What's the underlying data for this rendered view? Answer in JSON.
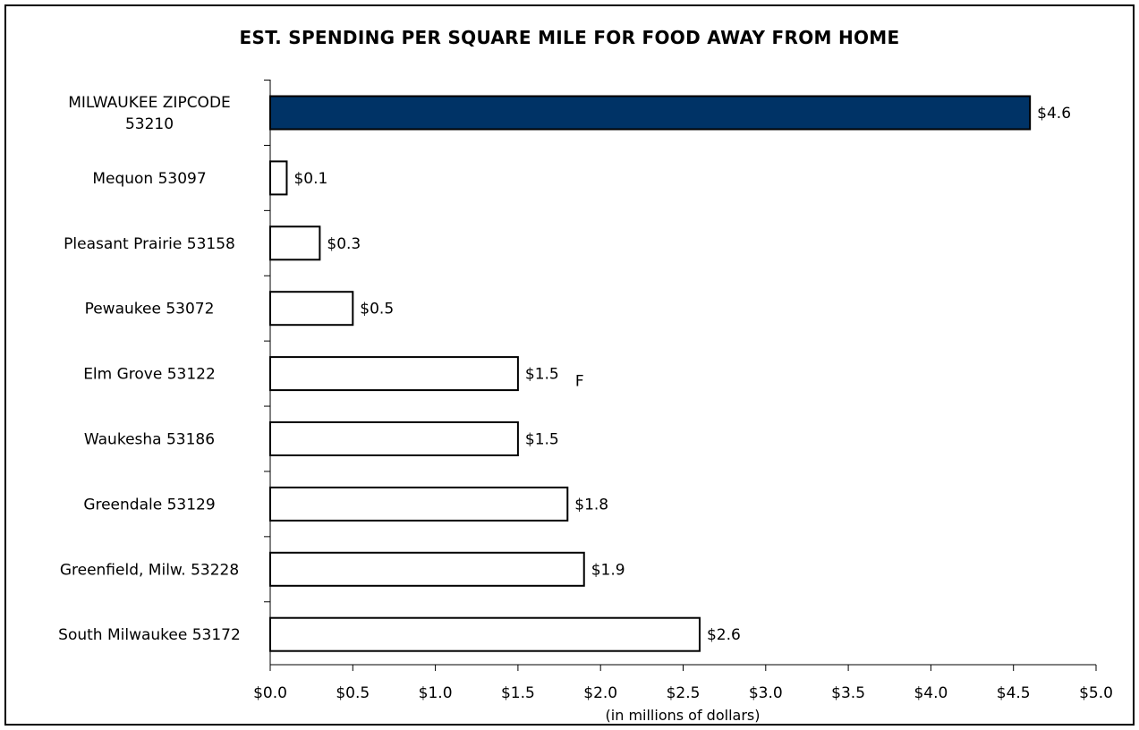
{
  "chart_data": {
    "type": "bar",
    "orientation": "horizontal",
    "title": "EST. SPENDING PER SQUARE MILE FOR FOOD AWAY FROM HOME",
    "xlabel": "(in millions of dollars)",
    "ylabel": "",
    "categories": [
      [
        "MILWAUKEE ZIPCODE",
        "53210"
      ],
      [
        "Mequon 53097"
      ],
      [
        "Pleasant Prairie 53158"
      ],
      [
        "Pewaukee 53072"
      ],
      [
        "Elm Grove 53122"
      ],
      [
        "Waukesha 53186"
      ],
      [
        "Greendale 53129"
      ],
      [
        "Greenfield, Milw. 53228"
      ],
      [
        "South Milwaukee 53172"
      ]
    ],
    "values": [
      4.6,
      0.1,
      0.3,
      0.5,
      1.5,
      1.5,
      1.8,
      1.9,
      2.6
    ],
    "value_labels": [
      "$4.6",
      "$0.1",
      "$0.3",
      "$0.5",
      "$1.5",
      "$1.5",
      "$1.8",
      "$1.9",
      "$2.6"
    ],
    "xlim": [
      0,
      5
    ],
    "x_ticks": [
      0,
      0.5,
      1,
      1.5,
      2,
      2.5,
      3,
      3.5,
      4,
      4.5,
      5
    ],
    "x_tick_labels": [
      "$0.0",
      "$0.5",
      "$1.0",
      "$1.5",
      "$2.0",
      "$2.5",
      "$3.0",
      "$3.5",
      "$4.0",
      "$4.5",
      "$5.0"
    ],
    "grid": false,
    "legend": "none",
    "highlight_index": 0,
    "colors": {
      "highlight": "#003366",
      "default": "#ffffff",
      "outline": "#000000"
    },
    "annotations": [
      {
        "text": "F",
        "category_index": 4
      }
    ]
  }
}
